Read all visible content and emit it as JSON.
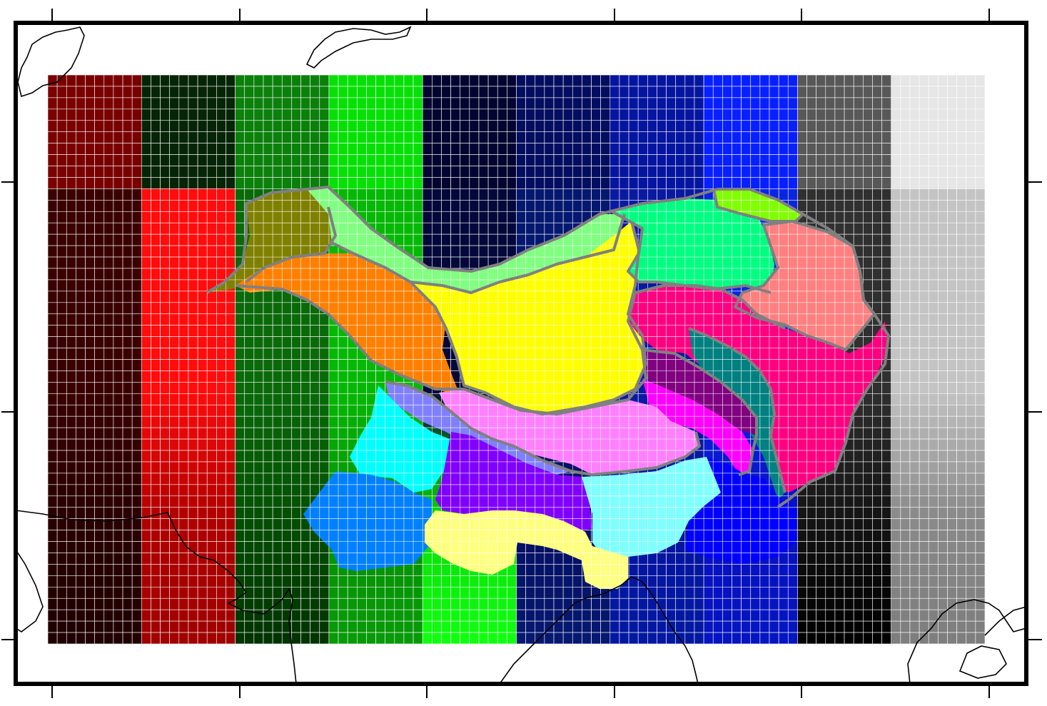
{
  "map": {
    "frame_color": "#000000",
    "grid_line_color": "#ffffff",
    "coastline_color": "#000000",
    "region_outline_color": "#808080",
    "grid": {
      "rows": 50,
      "cols_per_band": 10,
      "band_count": 10
    },
    "bands": [
      {
        "name": "dark-red",
        "top": "#7a0000",
        "mid": "#3a0000",
        "bottom": "#200000",
        "lower_alt": "#2a0000"
      },
      {
        "name": "red",
        "top": "#062406",
        "mid": "#ff0c0c",
        "bottom": "#a00000",
        "lower_alt": "#b00000"
      },
      {
        "name": "dark-green",
        "top": "#0b800b",
        "mid": "#0a6a0a",
        "bottom": "#023402",
        "lower_alt": "#045004"
      },
      {
        "name": "green",
        "top": "#07e007",
        "mid": "#06b806",
        "bottom": "#089a08",
        "lower_alt": "#069006"
      },
      {
        "name": "navy",
        "top": "#020530",
        "mid": "#03083a",
        "bottom": "#10ff10",
        "lower_alt": "#08d808"
      },
      {
        "name": "dark-blue",
        "top": "#040e60",
        "mid": "#051870",
        "bottom": "#061870",
        "lower_alt": "#050f60"
      },
      {
        "name": "blue",
        "top": "#0515a0",
        "mid": "#0a1aa0",
        "bottom": "#0318a0",
        "lower_alt": "#0515a0"
      },
      {
        "name": "bright-blue",
        "top": "#0820ff",
        "mid": "#0a25e0",
        "bottom": "#0515c0",
        "lower_alt": "#0a10c0"
      },
      {
        "name": "dark-grey",
        "top": "#585858",
        "mid": "#303030",
        "bottom": "#000000",
        "lower_alt": "#141414"
      },
      {
        "name": "light-grey",
        "top": "#e6e6e6",
        "mid": "#c4c4c4",
        "bottom": "#7e7e7e",
        "lower_alt": "#8a8a8a"
      }
    ],
    "regions": [
      {
        "name": "olive-region",
        "color": "#808000"
      },
      {
        "name": "light-green-region",
        "color": "#80ff80"
      },
      {
        "name": "orange-region",
        "color": "#ff8000"
      },
      {
        "name": "yellow-region",
        "color": "#ffff00"
      },
      {
        "name": "spring-green-region",
        "color": "#00ff80"
      },
      {
        "name": "chartreuse-region",
        "color": "#80ff00"
      },
      {
        "name": "salmon-region",
        "color": "#ff8080"
      },
      {
        "name": "deep-pink-region",
        "color": "#ff0080"
      },
      {
        "name": "teal-region",
        "color": "#008080"
      },
      {
        "name": "purple-region",
        "color": "#800080"
      },
      {
        "name": "magenta-region",
        "color": "#ff00ff"
      },
      {
        "name": "pink-region",
        "color": "#ff80ff"
      },
      {
        "name": "periwinkle-region",
        "color": "#8080ff"
      },
      {
        "name": "cyan-region",
        "color": "#00ffff"
      },
      {
        "name": "azure-region",
        "color": "#0080ff"
      },
      {
        "name": "violet-region",
        "color": "#8000ff"
      },
      {
        "name": "light-cyan-region",
        "color": "#80ffff"
      },
      {
        "name": "pale-yellow-region",
        "color": "#ffff80"
      },
      {
        "name": "blue-region",
        "color": "#0000ff"
      }
    ]
  }
}
